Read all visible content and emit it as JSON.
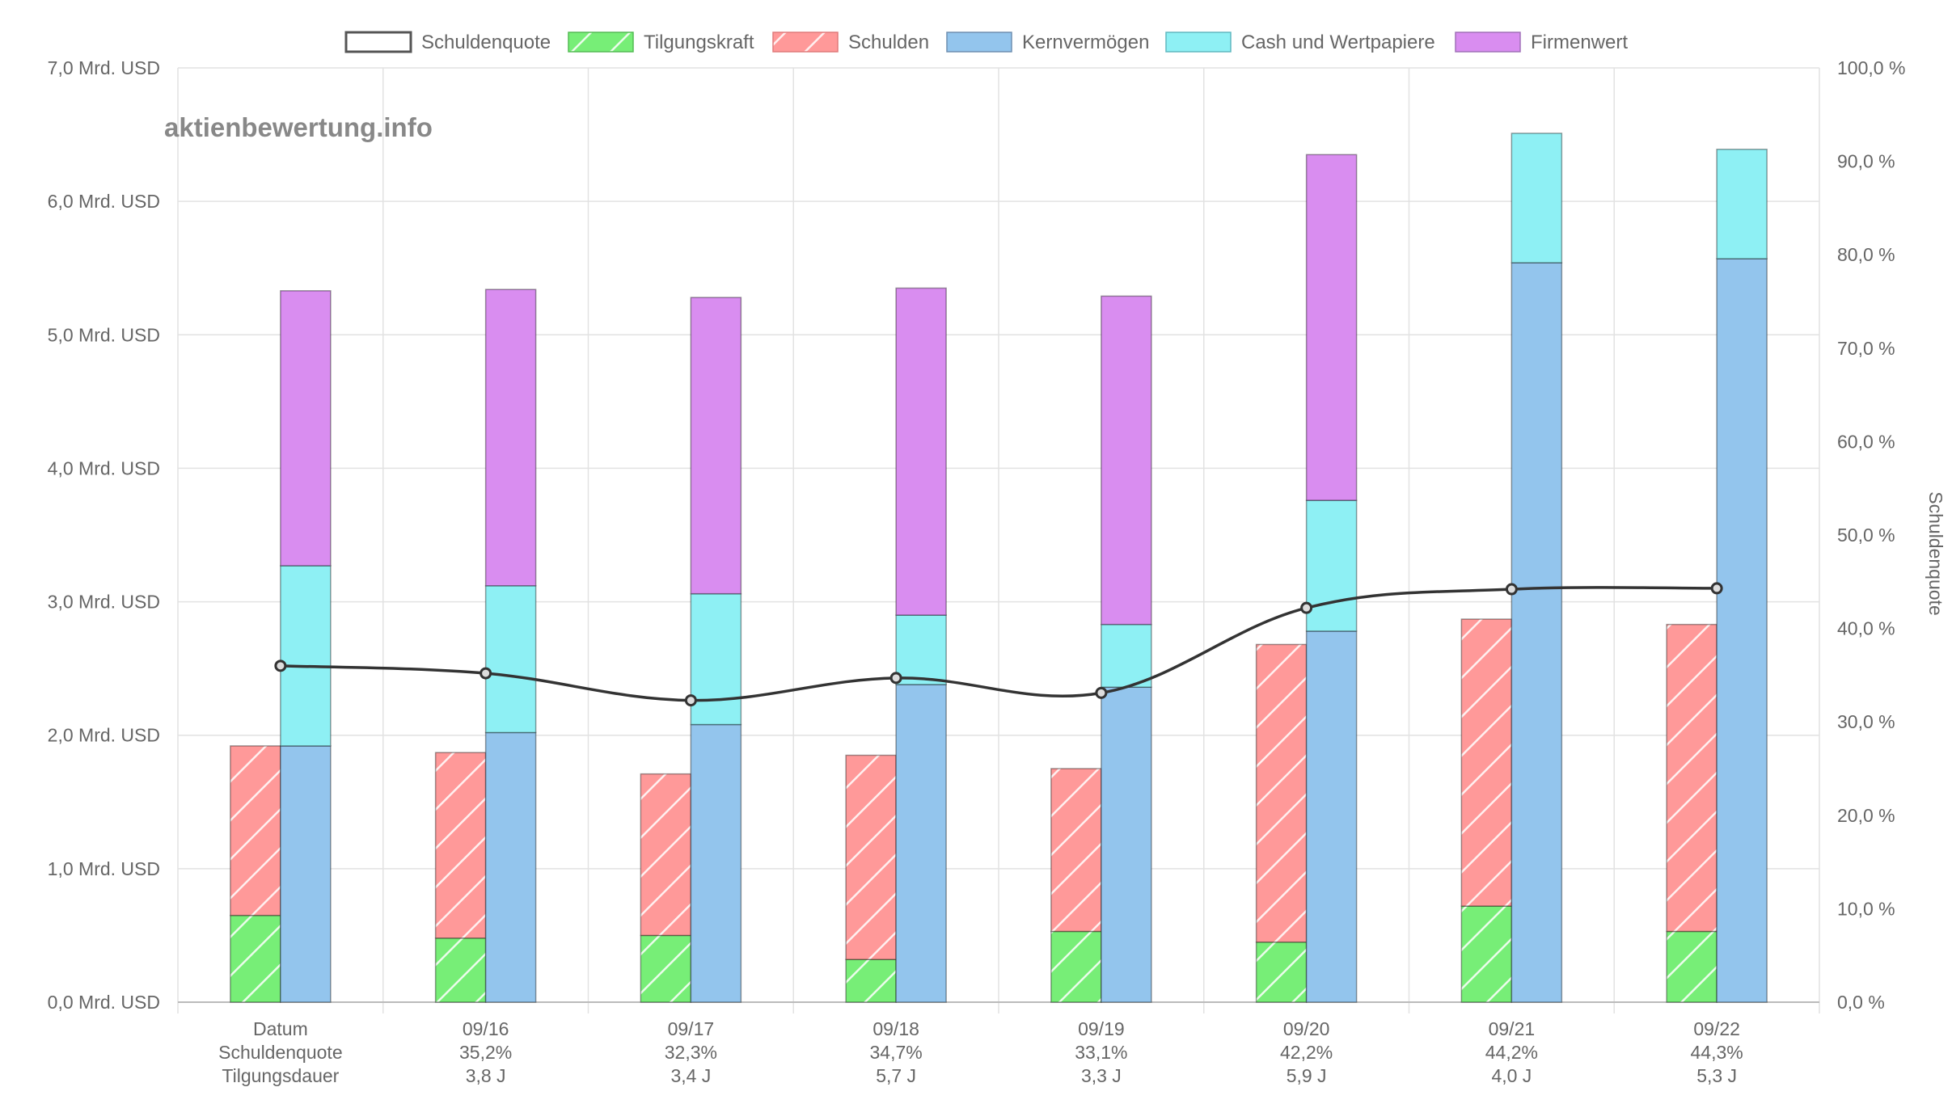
{
  "watermark": "aktienbewertung.info",
  "chart_data": {
    "type": "bar",
    "stacked": true,
    "title": "",
    "categories": [
      "Datum",
      "09/16",
      "09/17",
      "09/18",
      "09/19",
      "09/20",
      "09/21",
      "09/22"
    ],
    "row_labels": [
      "Datum",
      "Schuldenquote",
      "Tilgungsdauer"
    ],
    "x_labels": [
      [
        "Datum",
        "Schuldenquote",
        "Tilgungsdauer"
      ],
      [
        "09/16",
        "35,2%",
        "3,8 J"
      ],
      [
        "09/17",
        "32,3%",
        "3,4 J"
      ],
      [
        "09/18",
        "34,7%",
        "5,7 J"
      ],
      [
        "09/19",
        "33,1%",
        "3,3 J"
      ],
      [
        "09/20",
        "42,2%",
        "5,9 J"
      ],
      [
        "09/21",
        "44,2%",
        "4,0 J"
      ],
      [
        "09/22",
        "44,3%",
        "5,3 J"
      ]
    ],
    "legend_position": "top-center",
    "legend": [
      {
        "name": "Schuldenquote",
        "color": "#ffffff",
        "border": "#555555",
        "pattern": "none"
      },
      {
        "name": "Tilgungskraft",
        "color": "#77ee77",
        "border": "#55bb55",
        "pattern": "hatch"
      },
      {
        "name": "Schulden",
        "color": "#ff9999",
        "border": "#e07a7a",
        "pattern": "hatch"
      },
      {
        "name": "Kernvermögen",
        "color": "#93c5ed",
        "border": "#6f8fb0",
        "pattern": "none"
      },
      {
        "name": "Cash und Wertpapiere",
        "color": "#8ef0f4",
        "border": "#60b8c0",
        "pattern": "none"
      },
      {
        "name": "Firmenwert",
        "color": "#d98df0",
        "border": "#a070b8",
        "pattern": "none"
      }
    ],
    "y_left": {
      "min": 0,
      "max": 7,
      "step": 1,
      "ticks": [
        "0,0 Mrd. USD",
        "1,0 Mrd. USD",
        "2,0 Mrd. USD",
        "3,0 Mrd. USD",
        "4,0 Mrd. USD",
        "5,0 Mrd. USD",
        "6,0 Mrd. USD",
        "7,0 Mrd. USD"
      ]
    },
    "y_right": {
      "min": 0,
      "max": 100,
      "step": 10,
      "label": "Schuldenquote",
      "ticks": [
        "0,0 %",
        "10,0 %",
        "20,0 %",
        "30,0 %",
        "40,0 %",
        "50,0 %",
        "60,0 %",
        "70,0 %",
        "80,0 %",
        "90,0 %",
        "100,0 %"
      ]
    },
    "grid": true,
    "stack_left": {
      "series": [
        {
          "name": "Tilgungskraft",
          "values": [
            0.65,
            0.48,
            0.5,
            0.32,
            0.53,
            0.45,
            0.72,
            0.53
          ]
        },
        {
          "name": "Schulden",
          "values": [
            1.27,
            1.39,
            1.21,
            1.53,
            1.22,
            2.23,
            2.15,
            2.3
          ]
        }
      ]
    },
    "stack_right": {
      "series": [
        {
          "name": "Kernvermögen",
          "values": [
            1.92,
            2.02,
            2.08,
            2.38,
            2.36,
            2.78,
            5.54,
            5.57
          ]
        },
        {
          "name": "Cash und Wertpapiere",
          "values": [
            1.35,
            1.1,
            0.98,
            0.52,
            0.47,
            0.98,
            0.97,
            0.82
          ]
        },
        {
          "name": "Firmenwert",
          "values": [
            2.06,
            2.22,
            2.22,
            2.45,
            2.46,
            2.59,
            0,
            0
          ]
        }
      ]
    },
    "line": {
      "name": "Schuldenquote",
      "axis": "right",
      "values": [
        36.0,
        35.2,
        32.3,
        34.7,
        33.1,
        42.2,
        44.2,
        44.3
      ]
    }
  }
}
